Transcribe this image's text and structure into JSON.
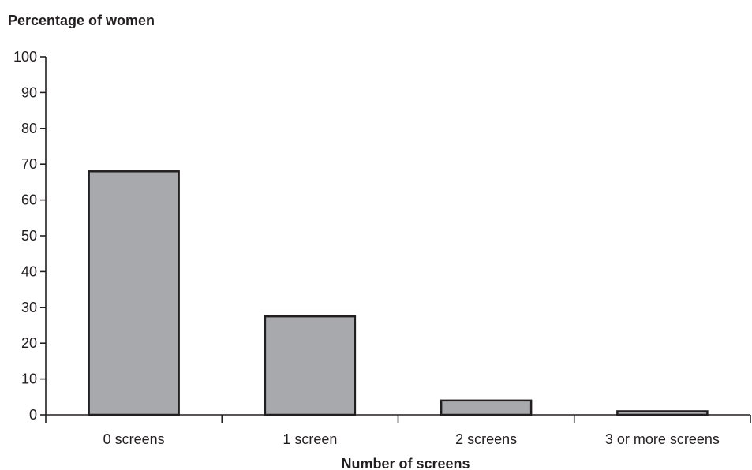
{
  "chart_data": {
    "type": "bar",
    "ylabel": "Percentage of women",
    "xlabel": "Number of screens",
    "categories": [
      "0 screens",
      "1 screen",
      "2 screens",
      "3 or more screens"
    ],
    "values": [
      68,
      27.5,
      4,
      1
    ],
    "ylim": [
      0,
      100
    ],
    "yticks": [
      0,
      10,
      20,
      30,
      40,
      50,
      60,
      70,
      80,
      90,
      100
    ],
    "ytick_labels": [
      "0",
      "10",
      "20",
      "30",
      "40",
      "50",
      "60",
      "70",
      "80",
      "90",
      "100"
    ],
    "grid": false,
    "bar_color": "#a7a9ac",
    "edge_color": "#231f20"
  }
}
